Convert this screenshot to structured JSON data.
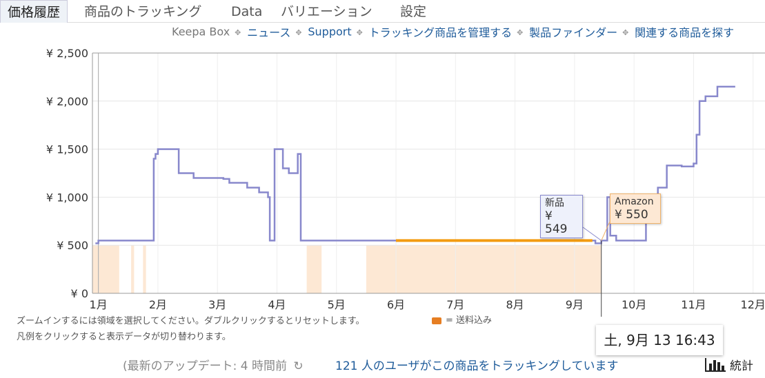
{
  "tabs": [
    {
      "label": "価格履歴",
      "active": true
    },
    {
      "label": "商品のトラッキング",
      "active": false
    },
    {
      "label": "Data",
      "active": false
    },
    {
      "label": "バリエーション",
      "active": false
    },
    {
      "label": "設定",
      "active": false
    }
  ],
  "links": {
    "keepa_box": "Keepa Box",
    "news": "ニュース",
    "support": "Support",
    "manage": "トラッキング商品を管理する",
    "finder": "製品ファインダー",
    "related": "関連する商品を探す"
  },
  "notes": {
    "zoom": "ズームインするには領域を選択してください。ダブルクリックするとリセットします。",
    "shipping": "= 送料込み",
    "legend": "凡例をクリックすると表示データが切り替わります。"
  },
  "footer": {
    "update": "(最新のアップデート: 4 時間前",
    "tracking": "121 人のユーザがこの商品をトラッキングしています",
    "stats": "統計"
  },
  "tooltips": {
    "new_label": "新品",
    "new_price": "¥ 549",
    "amazon_label": "Amazon",
    "amazon_price": "¥ 550",
    "date": "土, 9月 13 16:43"
  },
  "colors": {
    "new": "#8888cc",
    "amazon": "#f39c12",
    "amazon_fill": "#fde8d4",
    "link": "#1e5b9a"
  },
  "chart_data": {
    "type": "line",
    "title": "",
    "xlabel": "",
    "ylabel": "",
    "ylim": [
      0,
      2500
    ],
    "yticks": [
      0,
      500,
      1000,
      1500,
      2000,
      2500
    ],
    "ytick_labels": [
      "¥ 0",
      "¥ 500",
      "¥ 1,000",
      "¥ 1,500",
      "¥ 2,000",
      "¥ 2,500"
    ],
    "xlim": [
      0.9,
      12.2
    ],
    "xticks": [
      1,
      2,
      3,
      4,
      5,
      6,
      7,
      8,
      9,
      10,
      11,
      12
    ],
    "xtick_labels": [
      "1月",
      "2月",
      "3月",
      "4月",
      "5月",
      "6月",
      "7月",
      "8月",
      "9月",
      "10月",
      "11月",
      "12月"
    ],
    "grid": true,
    "series": [
      {
        "name": "新品",
        "color": "#8888cc",
        "points": [
          [
            0.95,
            520
          ],
          [
            1.0,
            549
          ],
          [
            1.3,
            549
          ],
          [
            1.6,
            549
          ],
          [
            1.92,
            549
          ],
          [
            1.93,
            1400
          ],
          [
            1.96,
            1450
          ],
          [
            2.0,
            1500
          ],
          [
            2.3,
            1500
          ],
          [
            2.35,
            1250
          ],
          [
            2.6,
            1200
          ],
          [
            2.9,
            1200
          ],
          [
            3.1,
            1190
          ],
          [
            3.2,
            1150
          ],
          [
            3.4,
            1150
          ],
          [
            3.5,
            1100
          ],
          [
            3.7,
            1050
          ],
          [
            3.85,
            1000
          ],
          [
            3.88,
            549
          ],
          [
            3.95,
            549
          ],
          [
            3.96,
            1500
          ],
          [
            4.1,
            1300
          ],
          [
            4.2,
            1250
          ],
          [
            4.3,
            1250
          ],
          [
            4.35,
            1450
          ],
          [
            4.4,
            549
          ],
          [
            4.5,
            549
          ],
          [
            5.0,
            549
          ],
          [
            6.0,
            549
          ],
          [
            7.0,
            549
          ],
          [
            8.0,
            549
          ],
          [
            9.0,
            549
          ],
          [
            9.25,
            549
          ],
          [
            9.35,
            520
          ],
          [
            9.45,
            549
          ],
          [
            9.55,
            1000
          ],
          [
            9.6,
            600
          ],
          [
            9.7,
            549
          ],
          [
            10.2,
            880
          ],
          [
            10.4,
            1100
          ],
          [
            10.55,
            1330
          ],
          [
            10.8,
            1320
          ],
          [
            11.0,
            1350
          ],
          [
            11.05,
            1650
          ],
          [
            11.1,
            2000
          ],
          [
            11.2,
            2050
          ],
          [
            11.4,
            2150
          ],
          [
            11.7,
            2150
          ]
        ]
      },
      {
        "name": "Amazon",
        "color": "#f39c12",
        "points": [
          [
            6.0,
            549
          ],
          [
            9.3,
            549
          ]
        ]
      }
    ],
    "amazon_stock_ranges": [
      [
        0.9,
        1.35
      ],
      [
        1.55,
        1.6
      ],
      [
        1.75,
        1.8
      ],
      [
        4.5,
        4.75
      ],
      [
        5.5,
        9.45
      ]
    ],
    "cursor_month": 9.45
  }
}
